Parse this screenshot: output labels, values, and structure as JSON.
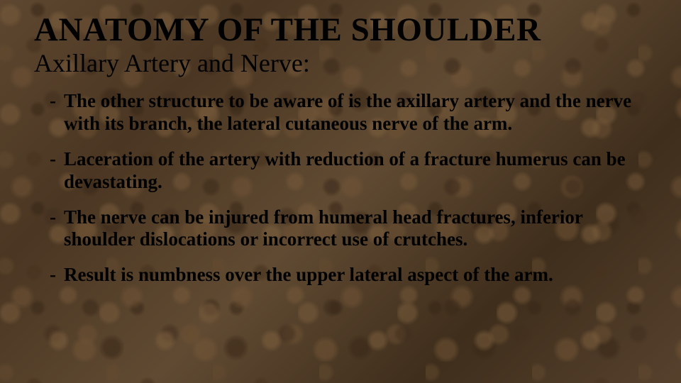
{
  "slide": {
    "title": "ANATOMY OF THE SHOULDER",
    "subtitle": "Axillary Artery and Nerve:",
    "bullets": [
      "The other structure to be aware of is the axillary artery and the  nerve with its branch, the lateral cutaneous nerve of the arm.",
      "Laceration of the artery with reduction of a fracture humerus can be devastating.",
      "The nerve can be injured from humeral head fractures, inferior shoulder dislocations or incorrect use of crutches.",
      "Result is numbness over the upper lateral aspect of the arm."
    ],
    "style": {
      "title_fontsize": 47,
      "subtitle_fontsize": 36,
      "bullet_fontsize": 27,
      "text_color": "#000000",
      "background_base": "#55402c",
      "font_family": "Georgia, Times New Roman, serif"
    }
  }
}
